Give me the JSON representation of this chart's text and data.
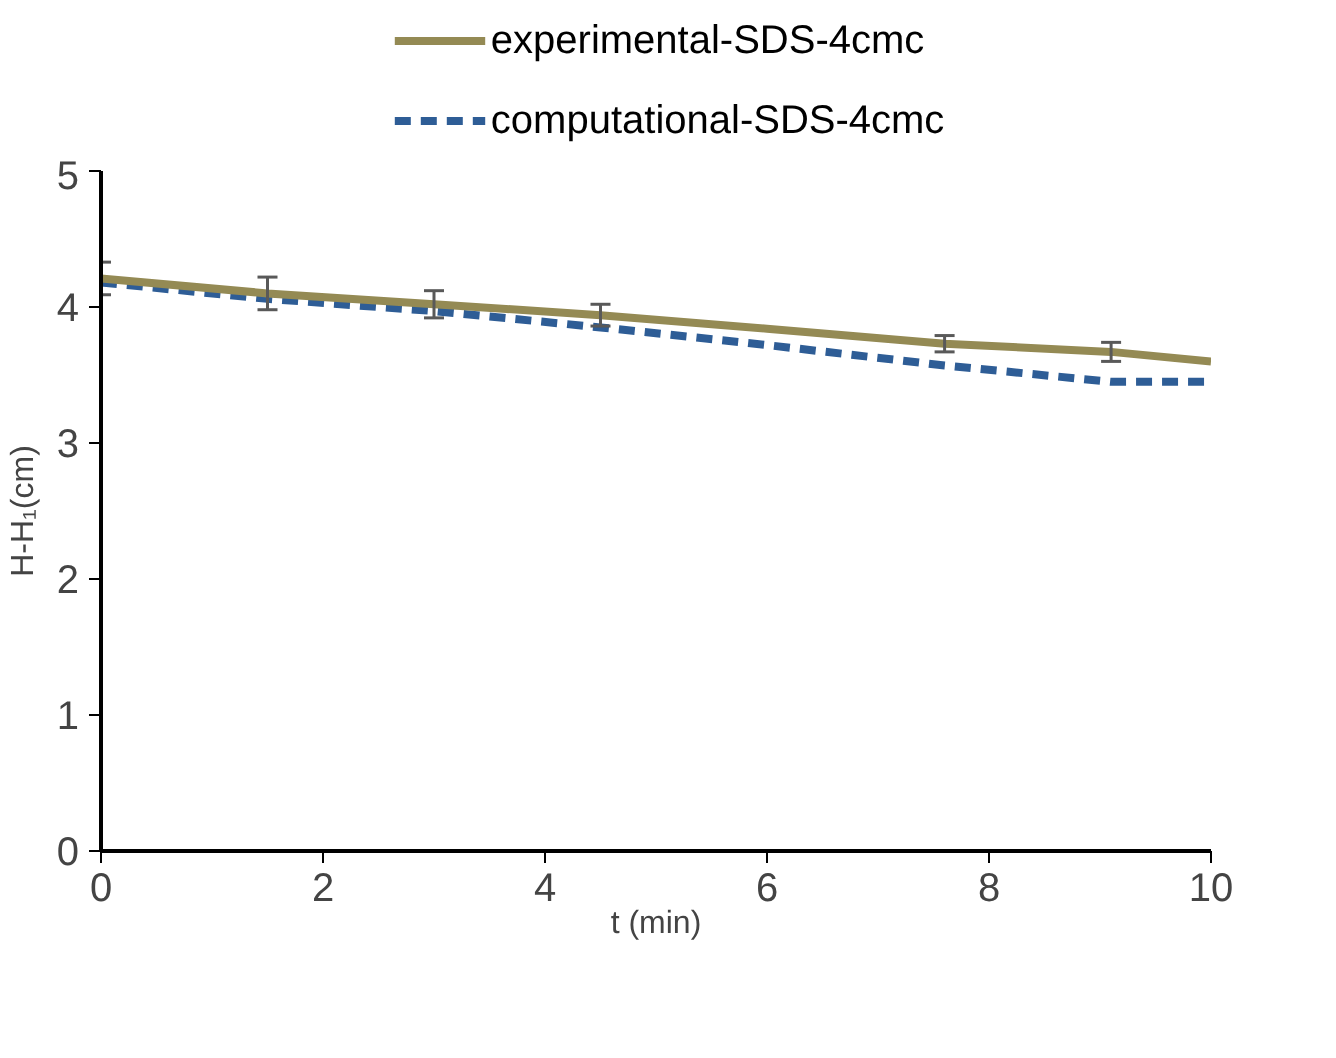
{
  "chart_data": {
    "type": "line",
    "xlabel": "t (min)",
    "ylabel": "H-H₁(cm)",
    "x": [
      0,
      1.5,
      3,
      4.5,
      6,
      7.6,
      9.1,
      10
    ],
    "series": [
      {
        "name": "experimental-SDS-4cmc",
        "color": "#948a54",
        "line_style": "solid",
        "values": [
          4.21,
          4.1,
          4.02,
          3.94,
          3.84,
          3.73,
          3.67,
          3.6
        ],
        "errors": [
          0.12,
          0.12,
          0.1,
          0.08,
          null,
          0.06,
          0.07,
          null
        ]
      },
      {
        "name": "computational-SDS-4cmc",
        "color": "#2e5d96",
        "line_style": "dashed",
        "values": [
          4.18,
          4.06,
          3.97,
          3.85,
          3.72,
          3.57,
          3.45,
          3.45
        ]
      }
    ],
    "xlim": [
      0,
      10
    ],
    "xticks": [
      0,
      2,
      4,
      6,
      8,
      10
    ],
    "ylim": [
      0,
      5
    ],
    "yticks": [
      0,
      1,
      2,
      3,
      4,
      5
    ],
    "grid": false,
    "legend": "top",
    "marker": "none"
  }
}
